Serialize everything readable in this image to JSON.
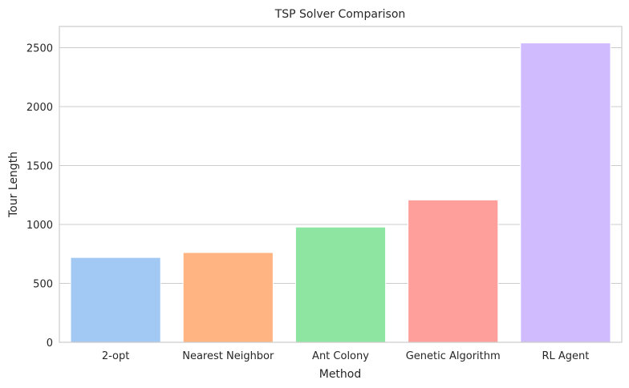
{
  "chart_data": {
    "type": "bar",
    "title": "TSP Solver Comparison",
    "xlabel": "Method",
    "ylabel": "Tour Length",
    "categories": [
      "2-opt",
      "Nearest Neighbor",
      "Ant Colony",
      "Genetic Algorithm",
      "RL Agent"
    ],
    "values": [
      720,
      762,
      978,
      1208,
      2540
    ],
    "colors": [
      "#a1c9f4",
      "#ffb482",
      "#8de5a1",
      "#ff9f9b",
      "#d0bbff"
    ],
    "ylim": [
      0,
      2680
    ],
    "yticks": [
      0,
      500,
      1000,
      1500,
      2000,
      2500
    ],
    "grid": "horizontal",
    "legend": "none"
  }
}
